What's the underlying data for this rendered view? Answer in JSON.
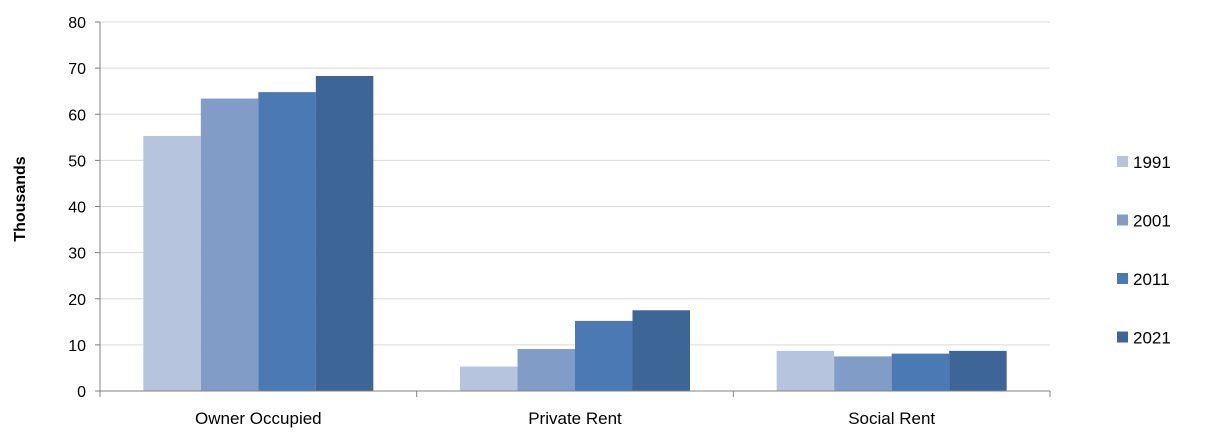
{
  "chart_data": {
    "type": "bar",
    "title": "",
    "xlabel": "",
    "ylabel": "Thousands",
    "ylim": [
      0,
      80
    ],
    "yticks": [
      0,
      10,
      20,
      30,
      40,
      50,
      60,
      70,
      80
    ],
    "grid": true,
    "legend_position": "right",
    "categories": [
      "Owner Occupied",
      "Private Rent",
      "Social Rent"
    ],
    "series": [
      {
        "name": "1991",
        "color": "#b7c4dd",
        "values": [
          55.3,
          5.3,
          8.7
        ]
      },
      {
        "name": "2001",
        "color": "#809cc7",
        "values": [
          63.4,
          9.1,
          7.5
        ]
      },
      {
        "name": "2011",
        "color": "#4a79b3",
        "values": [
          64.8,
          15.2,
          8.1
        ]
      },
      {
        "name": "2021",
        "color": "#3d6596",
        "values": [
          68.3,
          17.5,
          8.7
        ]
      }
    ]
  }
}
